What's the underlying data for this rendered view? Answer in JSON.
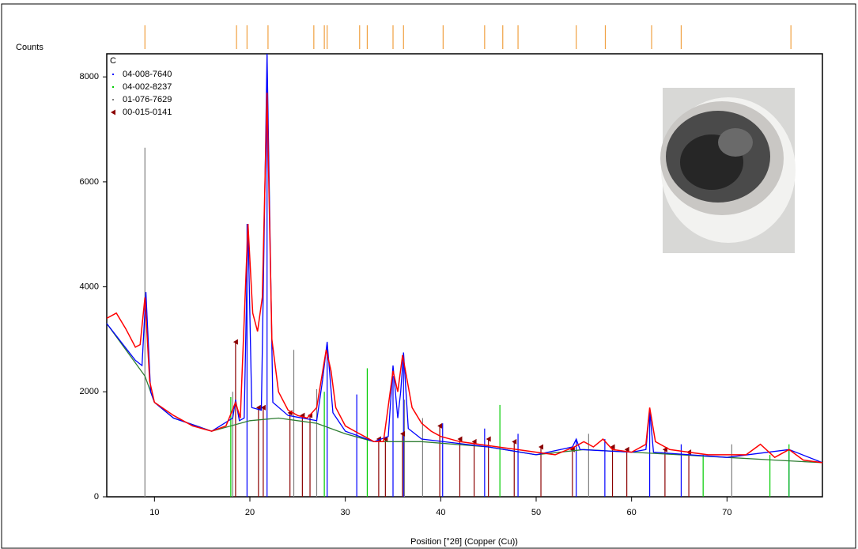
{
  "chart_data": {
    "type": "xrd",
    "y_label": "Counts",
    "x_label": "Position [°2θ] (Copper (Cu))",
    "legend_title": "C",
    "xlim": [
      5,
      80
    ],
    "ylim": [
      0,
      8440
    ],
    "xticks": [
      10,
      20,
      30,
      40,
      50,
      60,
      70
    ],
    "yticks": [
      0,
      2000,
      4000,
      6000,
      8000
    ],
    "peak_markers": {
      "color": "#f0a040",
      "x": [
        9.0,
        18.6,
        19.7,
        21.9,
        26.7,
        27.8,
        28.1,
        31.5,
        32.3,
        35.0,
        36.1,
        40.25,
        44.6,
        46.5,
        48.1,
        54.2,
        57.25,
        62.1,
        65.2,
        76.7
      ]
    },
    "series": [
      {
        "color": "#ff0000",
        "x": [
          5,
          6,
          7,
          8,
          8.5,
          9.0,
          9.5,
          10,
          12,
          14,
          16,
          17.5,
          18.5,
          19,
          19.8,
          20.3,
          20.8,
          21.3,
          21.8,
          22.3,
          23,
          24,
          25,
          26,
          27,
          28,
          28.5,
          29,
          30,
          31,
          32,
          33,
          34,
          35,
          35.5,
          36,
          36.5,
          37,
          38,
          39,
          40,
          42,
          44,
          46,
          48,
          50,
          52,
          54,
          55,
          56,
          57,
          58,
          60,
          61.5,
          61.9,
          62.5,
          64,
          66,
          68,
          70,
          72,
          73.5,
          75,
          76.5,
          78,
          80
        ],
        "values": [
          3400,
          3500,
          3200,
          2850,
          2900,
          3800,
          2200,
          1800,
          1550,
          1350,
          1250,
          1350,
          1800,
          1500,
          5200,
          3500,
          3150,
          3800,
          7700,
          3000,
          2000,
          1650,
          1550,
          1500,
          1700,
          2800,
          2400,
          1700,
          1350,
          1250,
          1150,
          1050,
          1050,
          2400,
          2000,
          2700,
          2200,
          1700,
          1400,
          1250,
          1150,
          1050,
          1000,
          950,
          900,
          850,
          800,
          950,
          1050,
          950,
          1100,
          900,
          850,
          1000,
          1700,
          1050,
          900,
          850,
          800,
          800,
          800,
          1000,
          750,
          900,
          700,
          650
        ]
      },
      {
        "color": "#0000ff",
        "x": [
          5,
          8,
          8.7,
          9.1,
          9.6,
          10,
          12,
          16,
          18.2,
          18.5,
          18.9,
          19.4,
          19.8,
          20.2,
          21.2,
          21.8,
          22.4,
          24,
          27,
          27.6,
          28.1,
          28.7,
          30,
          33,
          34.5,
          35.0,
          35.5,
          35.8,
          36.1,
          36.6,
          38,
          45,
          50,
          53.8,
          54.2,
          54.6,
          60,
          61.5,
          61.9,
          62.3,
          70,
          76.5,
          80
        ],
        "values": [
          3300,
          2600,
          2500,
          3900,
          2000,
          1800,
          1500,
          1250,
          1500,
          1850,
          1450,
          1500,
          5200,
          1700,
          1650,
          8440,
          1800,
          1550,
          1450,
          2200,
          2950,
          1600,
          1250,
          1050,
          1150,
          2500,
          1500,
          2000,
          2750,
          1300,
          1100,
          950,
          800,
          950,
          1100,
          900,
          850,
          900,
          1650,
          850,
          750,
          900,
          650
        ]
      },
      {
        "color": "#2e7d32",
        "x": [
          5,
          9,
          10,
          12,
          16,
          20,
          23,
          27,
          30,
          33,
          38,
          45,
          50,
          55,
          60,
          65,
          70,
          75,
          80
        ],
        "values": [
          3300,
          2300,
          1800,
          1500,
          1250,
          1450,
          1500,
          1400,
          1200,
          1050,
          1050,
          950,
          800,
          900,
          850,
          800,
          750,
          700,
          650
        ]
      }
    ],
    "reference_patterns": [
      {
        "name": "04-008-7640",
        "color": "#0000ff",
        "positions": [
          19.7,
          21.8,
          28.1,
          31.2,
          35.0,
          36.1,
          40.2,
          44.6,
          48.1,
          54.2,
          57.2,
          61.9,
          65.2,
          76.5
        ],
        "intensities": [
          5200,
          8400,
          2950,
          1950,
          2300,
          2600,
          1400,
          1300,
          1200,
          1100,
          1100,
          1600,
          1000,
          900
        ]
      },
      {
        "name": "04-002-8237",
        "color": "#00cc00",
        "positions": [
          18.0,
          27.8,
          32.3,
          46.2,
          67.5,
          74.5,
          76.5
        ],
        "intensities": [
          1900,
          2000,
          2450,
          1750,
          800,
          800,
          1000
        ]
      },
      {
        "name": "01-076-7629",
        "color": "#808080",
        "positions": [
          9.0,
          18.2,
          24.6,
          27.0,
          36.2,
          38.1,
          55.5,
          70.5
        ],
        "intensities": [
          6650,
          2000,
          2800,
          2050,
          1850,
          1500,
          1200,
          1000
        ]
      },
      {
        "name": "00-015-0141",
        "color": "#8b0000",
        "positions": [
          18.5,
          20.9,
          21.4,
          24.2,
          25.5,
          26.3,
          33.5,
          34.2,
          36.0,
          39.9,
          42,
          43.5,
          45,
          47.7,
          50.5,
          53.8,
          58,
          59.5,
          63.5,
          66
        ],
        "intensities": [
          2950,
          1700,
          1700,
          1600,
          1550,
          1550,
          1100,
          1100,
          1200,
          1350,
          1100,
          1050,
          1100,
          1050,
          950,
          900,
          950,
          900,
          900,
          850
        ]
      }
    ]
  }
}
